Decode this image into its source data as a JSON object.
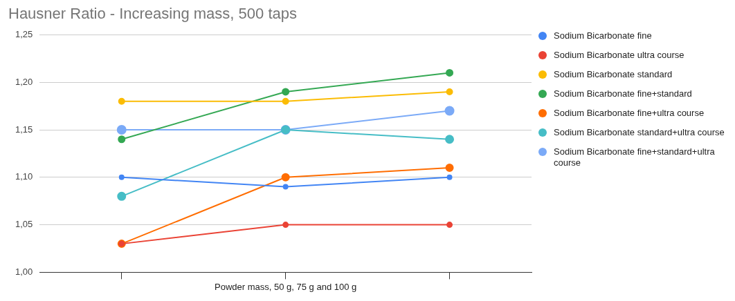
{
  "chart_data": {
    "type": "line",
    "title": "Hausner Ratio - Increasing mass, 500 taps",
    "xlabel": "Powder mass, 50 g, 75 g and 100 g",
    "categories": [
      null,
      null,
      null
    ],
    "series": [
      {
        "name": "Sodium Bicarbonate fine",
        "color": "#4285f4",
        "values": [
          1.1,
          1.09,
          1.1
        ]
      },
      {
        "name": "Sodium Bicarbonate ultra course",
        "color": "#ea4335",
        "values": [
          1.03,
          1.05,
          1.05
        ]
      },
      {
        "name": "Sodium Bicarbonate standard",
        "color": "#fbbc04",
        "values": [
          1.18,
          1.18,
          1.19
        ]
      },
      {
        "name": "Sodium Bicarbonate fine+standard",
        "color": "#34a853",
        "values": [
          1.14,
          1.19,
          1.21
        ]
      },
      {
        "name": "Sodium Bicarbonate fine+ultra course",
        "color": "#ff6d01",
        "values": [
          1.03,
          1.1,
          1.11
        ]
      },
      {
        "name": "Sodium Bicarbonate standard+ultra course",
        "color": "#46bdc6",
        "values": [
          1.08,
          1.15,
          1.14
        ]
      },
      {
        "name": "Sodium Bicarbonate fine+standard+ultra course",
        "color": "#7baaf7",
        "values": [
          1.15,
          1.15,
          1.17
        ]
      }
    ],
    "ylim": [
      1.0,
      1.25
    ],
    "yticks": [
      {
        "value": 1.0,
        "label": "1,00"
      },
      {
        "value": 1.05,
        "label": "1,05"
      },
      {
        "value": 1.1,
        "label": "1,10"
      },
      {
        "value": 1.15,
        "label": "1,15"
      },
      {
        "value": 1.2,
        "label": "1,20"
      },
      {
        "value": 1.25,
        "label": "1,25"
      }
    ],
    "grid": "y",
    "legend": "right",
    "marker": "circle",
    "line_style": "solid",
    "tick_labels": "y"
  }
}
